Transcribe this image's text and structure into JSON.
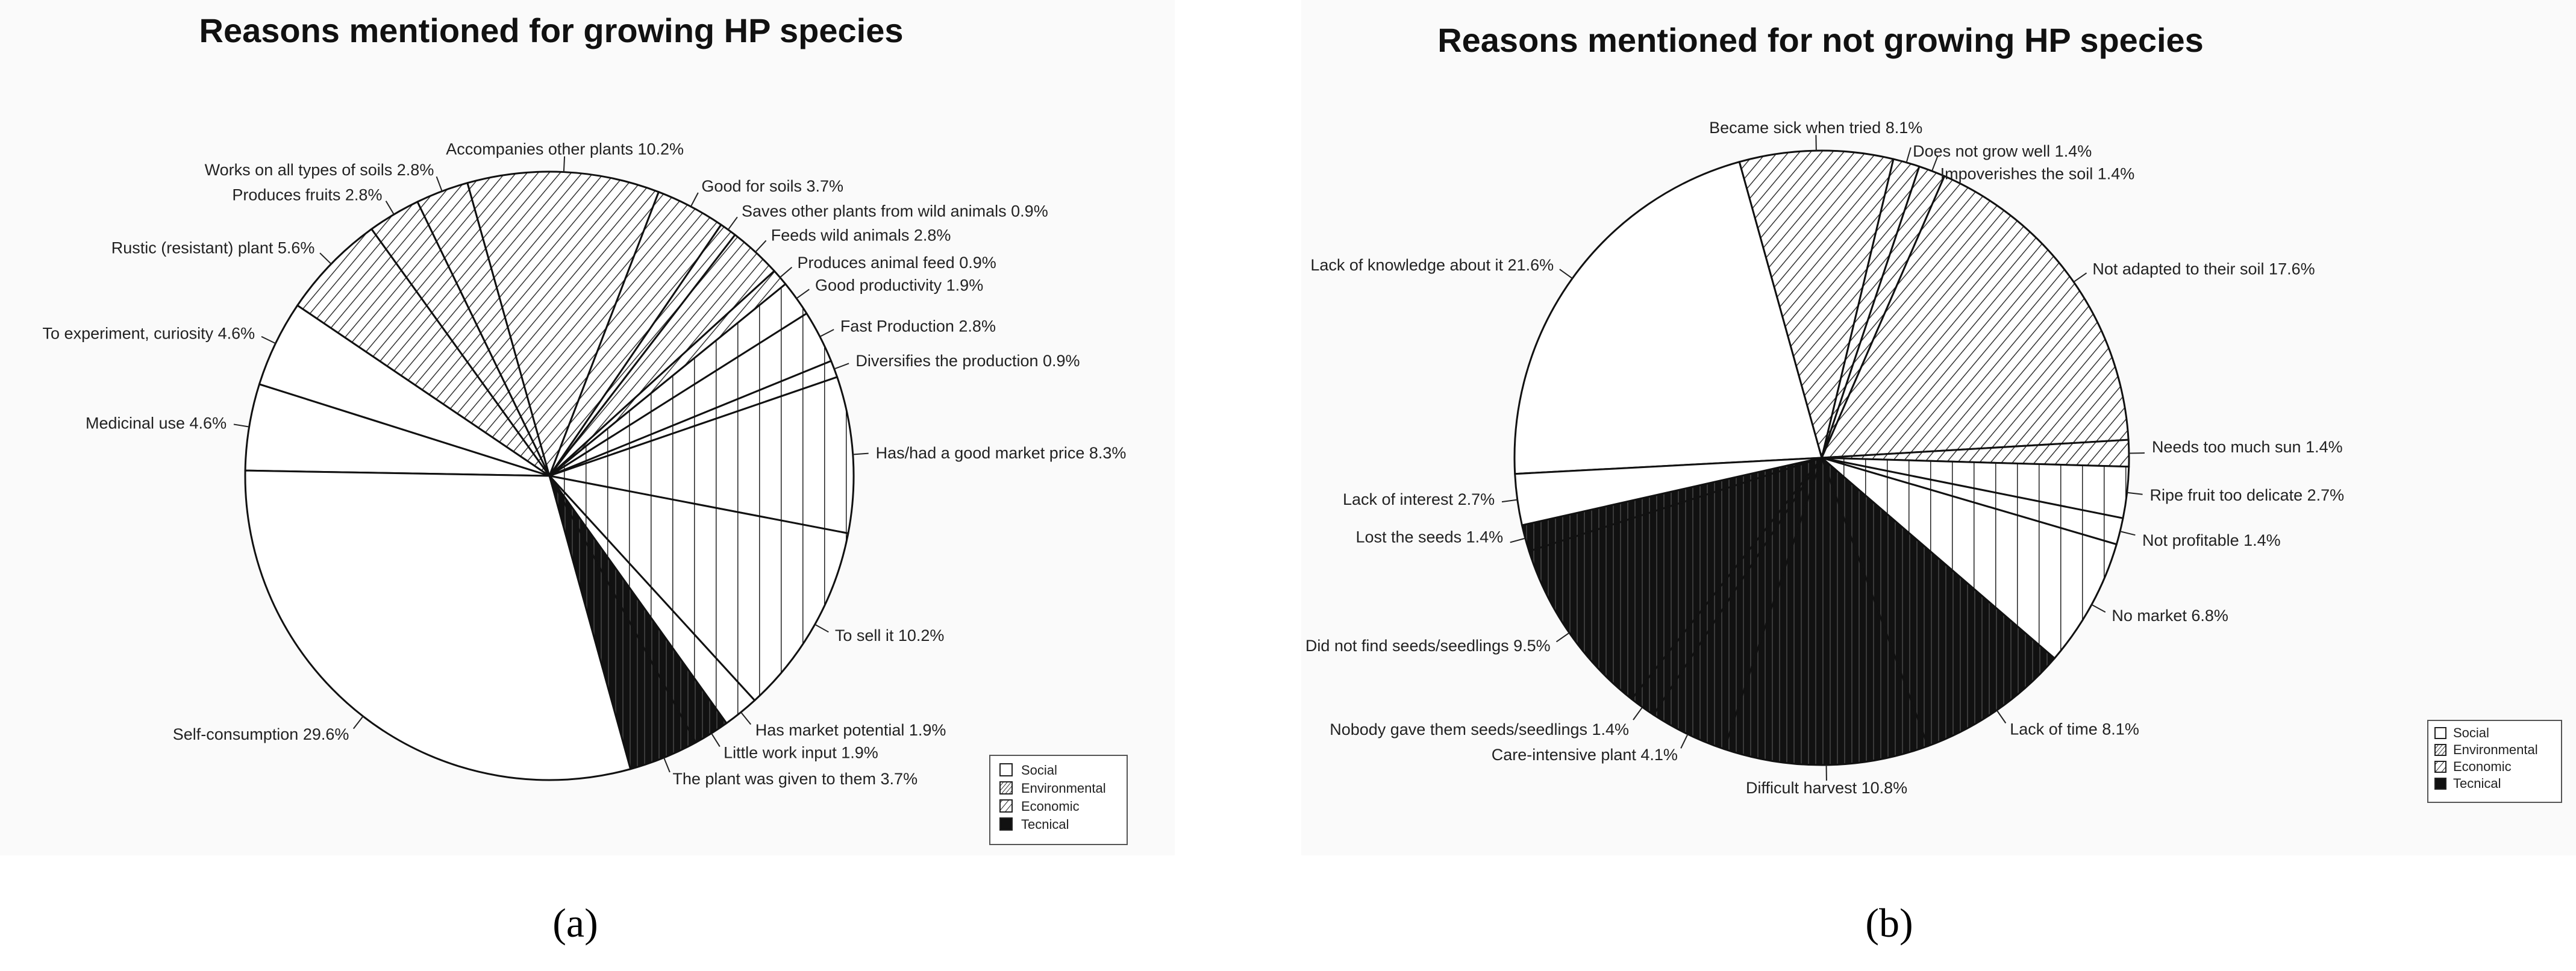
{
  "chart_data": [
    {
      "type": "pie",
      "panel_label": "(a)",
      "title": "Reasons mentioned for growing HP species",
      "categories": [
        "Social",
        "Environmental",
        "Economic",
        "Tecnical"
      ],
      "slices": [
        {
          "label": "Medicinal use 4.6%",
          "value": 4.6,
          "category": "Social"
        },
        {
          "label": "To experiment, curiosity 4.6%",
          "value": 4.6,
          "category": "Social"
        },
        {
          "label": "Rustic (resistant) plant 5.6%",
          "value": 5.6,
          "category": "Environmental"
        },
        {
          "label": "Produces fruits 2.8%",
          "value": 2.8,
          "category": "Environmental"
        },
        {
          "label": "Works on all types of soils 2.8%",
          "value": 2.8,
          "category": "Environmental"
        },
        {
          "label": "Accompanies other plants 10.2%",
          "value": 10.2,
          "category": "Environmental"
        },
        {
          "label": "Good for soils 3.7%",
          "value": 3.7,
          "category": "Environmental"
        },
        {
          "label": "Saves other plants from wild animals 0.9%",
          "value": 0.9,
          "category": "Environmental"
        },
        {
          "label": "Feeds wild animals 2.8%",
          "value": 2.8,
          "category": "Environmental"
        },
        {
          "label": "Produces animal feed 0.9%",
          "value": 0.9,
          "category": "Environmental"
        },
        {
          "label": "Good productivity 1.9%",
          "value": 1.9,
          "category": "Economic"
        },
        {
          "label": "Fast Production 2.8%",
          "value": 2.8,
          "category": "Economic"
        },
        {
          "label": "Diversifies the production 0.9%",
          "value": 0.9,
          "category": "Economic"
        },
        {
          "label": "Has/had a good market price 8.3%",
          "value": 8.3,
          "category": "Economic"
        },
        {
          "label": "To sell it 10.2%",
          "value": 10.2,
          "category": "Economic"
        },
        {
          "label": "Has market potential 1.9%",
          "value": 1.9,
          "category": "Economic"
        },
        {
          "label": "Little work input 1.9%",
          "value": 1.9,
          "category": "Tecnical"
        },
        {
          "label": "The plant was given to them 3.7%",
          "value": 3.7,
          "category": "Tecnical"
        },
        {
          "label": "Self-consumption 29.6%",
          "value": 29.6,
          "category": "Social"
        }
      ]
    },
    {
      "type": "pie",
      "panel_label": "(b)",
      "title": "Reasons mentioned for not growing HP species",
      "categories": [
        "Social",
        "Environmental",
        "Economic",
        "Tecnical"
      ],
      "slices": [
        {
          "label": "Lack of knowledge about it 21.6%",
          "value": 21.6,
          "category": "Social"
        },
        {
          "label": "Became sick when tried 8.1%",
          "value": 8.1,
          "category": "Environmental"
        },
        {
          "label": "Does not grow well 1.4%",
          "value": 1.4,
          "category": "Environmental"
        },
        {
          "label": "Impoverishes the soil 1.4%",
          "value": 1.4,
          "category": "Environmental"
        },
        {
          "label": "Not adapted to their soil 17.6%",
          "value": 17.6,
          "category": "Environmental"
        },
        {
          "label": "Needs too much sun 1.4%",
          "value": 1.4,
          "category": "Environmental"
        },
        {
          "label": "Ripe fruit too delicate 2.7%",
          "value": 2.7,
          "category": "Economic"
        },
        {
          "label": "Not profitable 1.4%",
          "value": 1.4,
          "category": "Economic"
        },
        {
          "label": "No market 6.8%",
          "value": 6.8,
          "category": "Economic"
        },
        {
          "label": "Lack of time 8.1%",
          "value": 8.1,
          "category": "Tecnical"
        },
        {
          "label": "Difficult harvest 10.8%",
          "value": 10.8,
          "category": "Tecnical"
        },
        {
          "label": "Care-intensive plant 4.1%",
          "value": 4.1,
          "category": "Tecnical"
        },
        {
          "label": "Nobody gave them seeds/seedlings 1.4%",
          "value": 1.4,
          "category": "Tecnical"
        },
        {
          "label": "Did not find seeds/seedlings 9.5%",
          "value": 9.5,
          "category": "Tecnical"
        },
        {
          "label": "Lost the seeds 1.4%",
          "value": 1.4,
          "category": "Tecnical"
        },
        {
          "label": "Lack of interest 2.7%",
          "value": 2.7,
          "category": "Social"
        }
      ]
    }
  ]
}
